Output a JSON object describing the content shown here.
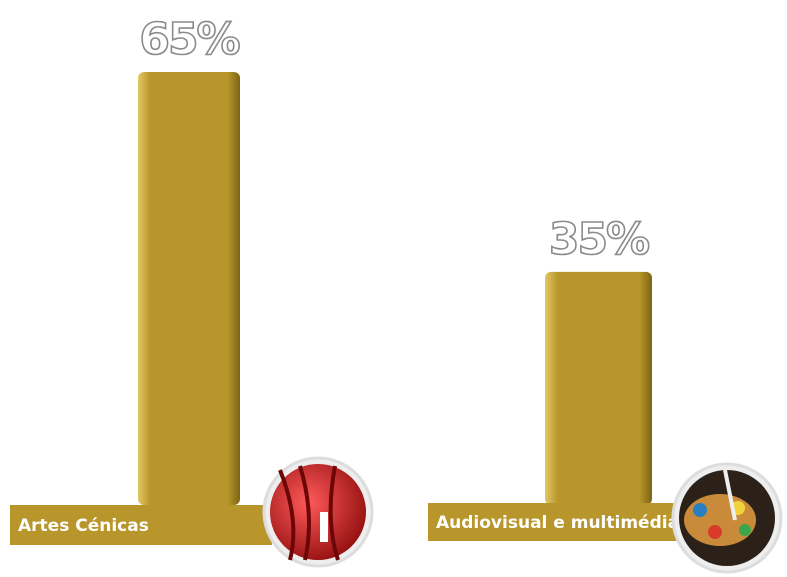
{
  "chart_data": {
    "type": "bar",
    "categories": [
      "Artes Cénicas",
      "Audiovisual e multimédia"
    ],
    "values": [
      65,
      35
    ],
    "value_labels": [
      "65%",
      "35%"
    ],
    "color": "#b8962b"
  }
}
